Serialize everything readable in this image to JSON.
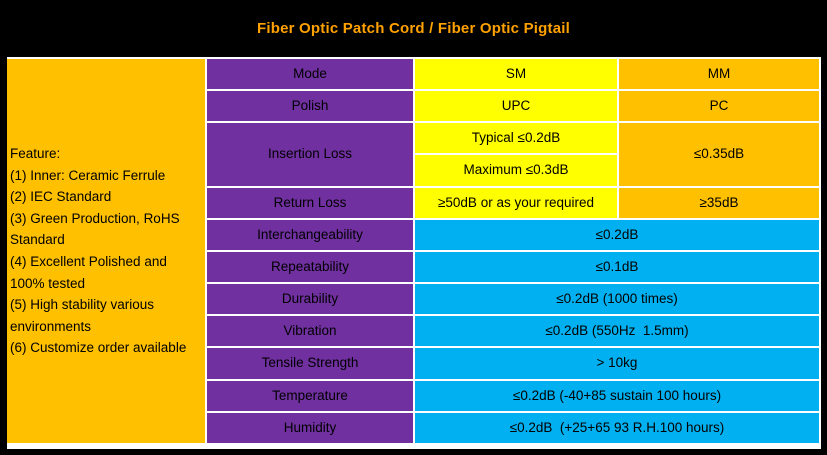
{
  "header": {
    "title": "Fiber Optic Patch Cord / Fiber Optic Pigtail"
  },
  "feature_panel": {
    "lines": [
      "Feature:",
      "(1) Inner: Ceramic Ferrule",
      "(2) IEC Standard",
      "(3) Green Production, RoHS Standard",
      "(4) Excellent Polished and 100% tested",
      "(5) High stability various environments",
      "(6) Customize order available"
    ]
  },
  "table": {
    "rows": [
      {
        "label": "Mode",
        "sm": "SM",
        "mm": "MM"
      },
      {
        "label": "Polish",
        "sm": "UPC",
        "mm": "PC"
      },
      {
        "label": "Insertion Loss",
        "sm_typical": "Typical ≤0.2dB",
        "sm_maximum": "Maximum ≤0.3dB",
        "mm": "≤0.35dB"
      },
      {
        "label": "Return Loss",
        "sm": "≥50dB or as your required",
        "mm": "≥35dB"
      },
      {
        "label": "Interchangeability",
        "value": "≤0.2dB"
      },
      {
        "label": "Repeatability",
        "value": "≤0.1dB"
      },
      {
        "label": "Durability",
        "value": "≤0.2dB (1000 times)"
      },
      {
        "label": "Vibration",
        "value": "≤0.2dB (550Hz  1.5mm)"
      },
      {
        "label": "Tensile Strength",
        "value": "> 10kg"
      },
      {
        "label": "Temperature",
        "value": "≤0.2dB (-40+85 sustain 100 hours)"
      },
      {
        "label": "Humidity",
        "value": "≤0.2dB  (+25+65 93 R.H.100 hours)"
      }
    ]
  },
  "colors": {
    "frame": "#000000",
    "gridline": "#FFFFFF",
    "title_text": "#FFA200",
    "label_purple": "#7030A0",
    "sm_yellow": "#FFFF00",
    "mm_orange": "#FFC000",
    "shared_cyan": "#00B0F0",
    "cell_text": "#000000"
  }
}
